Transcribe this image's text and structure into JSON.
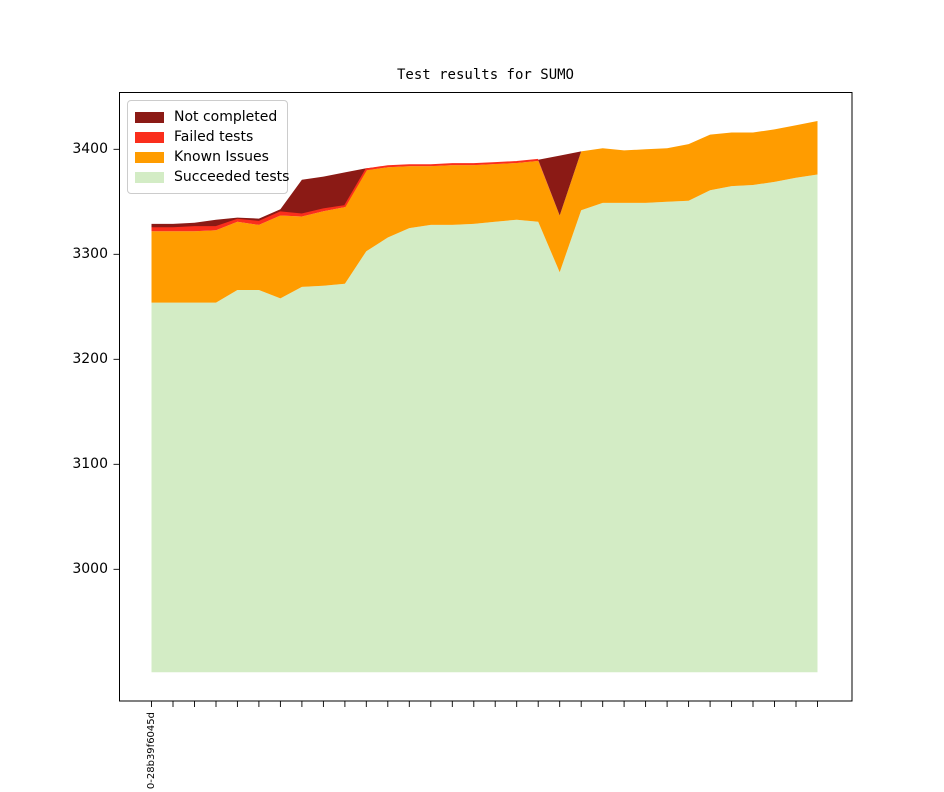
{
  "figure": {
    "background": "#ffffff",
    "frame_color": "#000000"
  },
  "chart_data": {
    "type": "area",
    "stacked": true,
    "title": "Test results for SUMO",
    "legend_position": "upper left",
    "grid": false,
    "x_tick_count": 32,
    "x_first_tick_label": "0-28b39f6045d",
    "y_ticks": [
      3400,
      3300,
      3200,
      3100,
      3000
    ],
    "ylim": [
      2875,
      3455
    ],
    "baseline_value": 2902,
    "series": [
      {
        "name": "Succeeded tests",
        "color": "#D3ECC5",
        "absolute": true,
        "values": [
          3254,
          3254,
          3254,
          3254,
          3266,
          3266,
          3258,
          3269,
          3270,
          3272,
          3303,
          3316,
          3325,
          3328,
          3328,
          3329,
          3331,
          3333,
          3331,
          3283,
          3342,
          3349,
          3349,
          3349,
          3350,
          3351,
          3361,
          3365,
          3366,
          3369,
          3373,
          3376
        ]
      },
      {
        "name": "Known Issues",
        "color": "#FF9C00",
        "values": [
          68,
          68,
          68,
          69,
          65,
          62,
          79,
          67,
          71,
          73,
          77,
          67,
          59,
          56,
          57,
          56,
          55,
          54,
          58,
          54,
          56,
          52,
          50,
          51,
          51,
          54,
          53,
          51,
          50,
          50,
          50,
          51
        ]
      },
      {
        "name": "Failed tests",
        "color": "#FA2E1C",
        "values": [
          3,
          3,
          4,
          3,
          2,
          3,
          3,
          2,
          2,
          1,
          1,
          1,
          1,
          1,
          1,
          1,
          1,
          1,
          1,
          0,
          0,
          0,
          0,
          0,
          0,
          0,
          0,
          0,
          0,
          0,
          0,
          0
        ]
      },
      {
        "name": "Not completed",
        "color": "#8B1A15",
        "values": [
          4,
          4,
          4,
          7,
          2,
          3,
          3,
          33,
          31,
          32,
          1,
          0,
          0,
          0,
          0,
          0,
          0,
          0,
          0,
          57,
          0,
          0,
          0,
          0,
          0,
          0,
          0,
          0,
          0,
          0,
          0,
          0
        ]
      }
    ],
    "legend_entries": [
      "Not completed",
      "Failed tests",
      "Known Issues",
      "Succeeded tests"
    ]
  }
}
